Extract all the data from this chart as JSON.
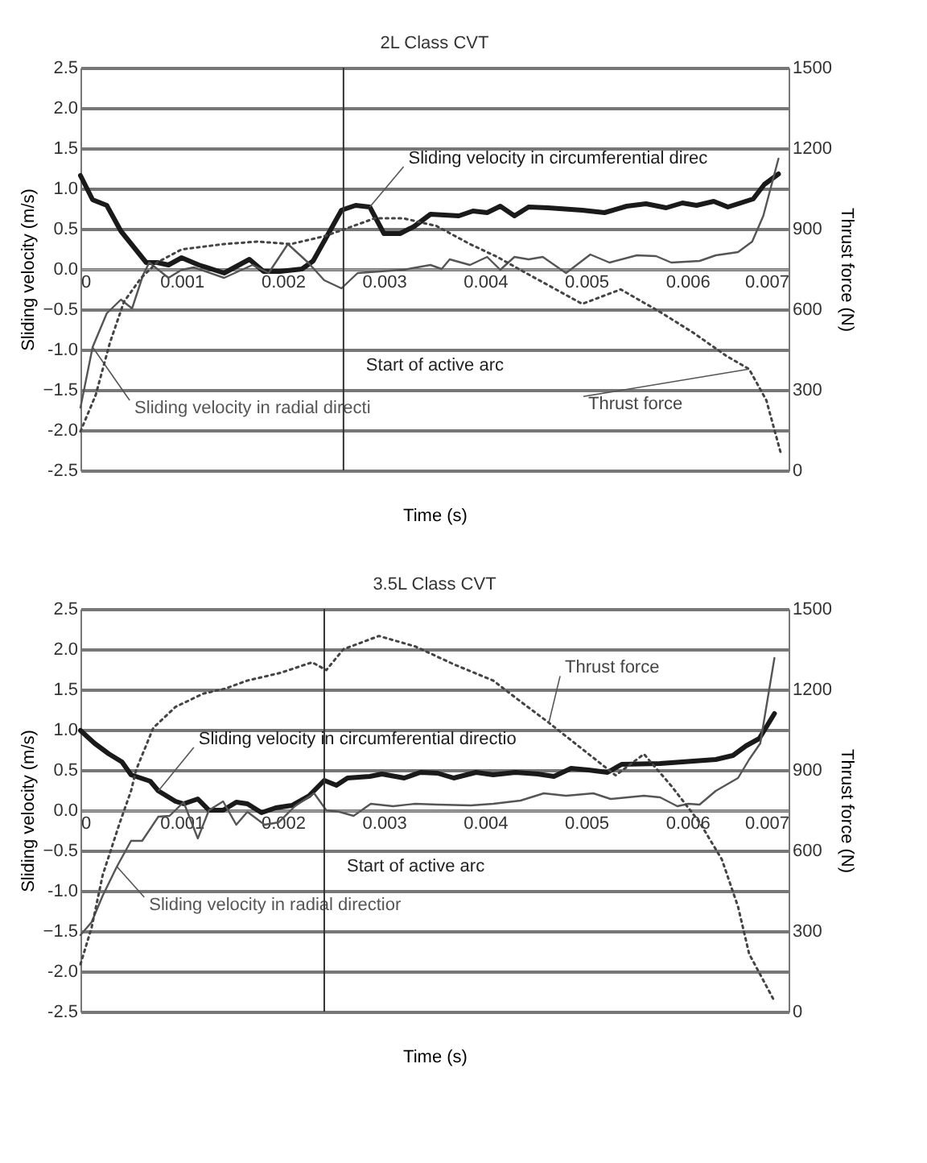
{
  "chart_data": [
    {
      "type": "line",
      "title": "2L Class CVT",
      "xlabel": "Time (s)",
      "ylabel": "Sliding velocity (m/s)",
      "y2label": "Thrust force (N)",
      "xlim": [
        0,
        0.007
      ],
      "xticks": [
        0,
        0.001,
        0.002,
        0.003,
        0.004,
        0.005,
        0.006,
        0.007
      ],
      "ylim": [
        -2.5,
        2.5
      ],
      "yticks": [
        {
          "value": -2.5,
          "label": "-2.5"
        },
        {
          "value": -2,
          "label": "-2.0"
        },
        -1.5,
        {
          "value": -1,
          "label": "-1.0"
        },
        -0.5,
        {
          "value": 0,
          "label": "0.0"
        },
        0.5,
        {
          "value": 1,
          "label": "1.0"
        },
        1.5,
        {
          "value": 2,
          "label": "2.0"
        },
        2.5
      ],
      "y2lim": [
        0,
        1500
      ],
      "y2ticks": [
        0,
        300,
        600,
        900,
        1200,
        1500
      ],
      "grid": "y",
      "series": [
        {
          "name": "Sliding velocity in circumferential direc",
          "color": "#1a1a1a",
          "line_style": "solid",
          "x": [
            0,
            0.00012,
            0.00026,
            0.0004,
            0.00065,
            0.00076,
            0.00087,
            0.001,
            0.00117,
            0.00142,
            0.00167,
            0.00181,
            0.00197,
            0.00219,
            0.0023,
            0.00258,
            0.00272,
            0.00286,
            0.003,
            0.00316,
            0.0033,
            0.00346,
            0.00374,
            0.00388,
            0.00402,
            0.00415,
            0.00429,
            0.00443,
            0.00462,
            0.00496,
            0.00518,
            0.0054,
            0.00559,
            0.00579,
            0.00595,
            0.00609,
            0.00626,
            0.0064,
            0.00665,
            0.00676,
            0.0069
          ],
          "values": [
            1.16,
            0.86,
            0.79,
            0.47,
            0.08,
            0.08,
            0.05,
            0.14,
            0.05,
            -0.05,
            0.12,
            -0.03,
            -0.03,
            0.0,
            0.1,
            0.73,
            0.79,
            0.77,
            0.44,
            0.44,
            0.53,
            0.68,
            0.66,
            0.72,
            0.7,
            0.78,
            0.66,
            0.77,
            0.76,
            0.73,
            0.7,
            0.78,
            0.81,
            0.76,
            0.82,
            0.79,
            0.84,
            0.77,
            0.87,
            1.05,
            1.18
          ]
        },
        {
          "name": "Sliding velocity in radial directi",
          "color": "#555555",
          "line_style": "solid",
          "x": [
            0,
            0.00012,
            0.00026,
            0.0004,
            0.00051,
            0.00062,
            0.00068,
            0.00087,
            0.001,
            0.00112,
            0.00142,
            0.0017,
            0.00186,
            0.00205,
            0.00225,
            0.00241,
            0.00258,
            0.00274,
            0.00296,
            0.00319,
            0.00346,
            0.00357,
            0.00365,
            0.00385,
            0.00402,
            0.00415,
            0.00429,
            0.00443,
            0.00457,
            0.0048,
            0.00504,
            0.00523,
            0.0055,
            0.00569,
            0.00584,
            0.00612,
            0.00628,
            0.0065,
            0.00664,
            0.00675,
            0.0069
          ],
          "values": [
            -1.72,
            -0.97,
            -0.55,
            -0.38,
            -0.49,
            -0.07,
            0.08,
            -0.11,
            -0.01,
            0.02,
            -0.11,
            0.05,
            -0.05,
            0.31,
            0.08,
            -0.14,
            -0.24,
            -0.05,
            -0.03,
            -0.01,
            0.05,
            0.0,
            0.12,
            0.05,
            0.15,
            -0.01,
            0.15,
            0.12,
            0.15,
            -0.05,
            0.18,
            0.08,
            0.17,
            0.16,
            0.08,
            0.1,
            0.17,
            0.21,
            0.34,
            0.66,
            1.37
          ]
        },
        {
          "name": "Thrust force",
          "color": "#444444",
          "line_style": "dotted",
          "axis": "y2",
          "x": [
            0,
            0.00015,
            0.00029,
            0.00043,
            0.0006,
            0.00076,
            0.001,
            0.00142,
            0.00175,
            0.00208,
            0.00241,
            0.00263,
            0.00291,
            0.00319,
            0.00352,
            0.00385,
            0.00412,
            0.0044,
            0.00468,
            0.00496,
            0.00534,
            0.00573,
            0.00606,
            0.00639,
            0.00661,
            0.00678,
            0.00692
          ],
          "values": [
            145,
            280,
            474,
            628,
            717,
            775,
            823,
            843,
            852,
            843,
            872,
            901,
            939,
            939,
            910,
            843,
            795,
            736,
            678,
            620,
            674,
            590,
            512,
            425,
            377,
            261,
            68
          ]
        }
      ],
      "ref_lines": [
        {
          "axis": "x",
          "value": 0.0026,
          "label": "Start of active arc"
        }
      ]
    },
    {
      "type": "line",
      "title": "3.5L Class CVT",
      "xlabel": "Time (s)",
      "ylabel": "Sliding velocity (m/s)",
      "y2label": "Thrust force (N)",
      "xlim": [
        0,
        0.007
      ],
      "xticks": [
        0,
        0.001,
        0.002,
        0.003,
        0.004,
        0.005,
        0.006,
        0.007
      ],
      "ylim": [
        -2.5,
        2.5
      ],
      "yticks": [
        {
          "value": -2.5,
          "label": "-2.5"
        },
        {
          "value": -2,
          "label": "-2.0"
        },
        -1.5,
        {
          "value": -1,
          "label": "-1.0"
        },
        -0.5,
        {
          "value": 0,
          "label": "0.0"
        },
        0.5,
        {
          "value": 1,
          "label": "1.0"
        },
        1.5,
        {
          "value": 2,
          "label": "2.0"
        },
        2.5
      ],
      "y2lim": [
        0,
        1500
      ],
      "y2ticks": [
        0,
        300,
        600,
        900,
        1200,
        1500
      ],
      "grid": "y",
      "series": [
        {
          "name": "Sliding velocity in circumferential directio",
          "color": "#1a1a1a",
          "line_style": "solid",
          "x": [
            0,
            0.00014,
            0.00028,
            0.00041,
            0.0005,
            0.00069,
            0.00077,
            0.00094,
            0.00102,
            0.00116,
            0.00127,
            0.00141,
            0.00154,
            0.00165,
            0.00179,
            0.00193,
            0.00209,
            0.00226,
            0.00241,
            0.00253,
            0.00264,
            0.00286,
            0.00298,
            0.0032,
            0.00336,
            0.00353,
            0.00369,
            0.00391,
            0.00408,
            0.0043,
            0.00452,
            0.00468,
            0.00485,
            0.00502,
            0.00521,
            0.00535,
            0.00573,
            0.00606,
            0.00628,
            0.00645,
            0.00658,
            0.00671,
            0.00686
          ],
          "values": [
            0.99,
            0.83,
            0.7,
            0.6,
            0.44,
            0.36,
            0.24,
            0.11,
            0.08,
            0.14,
            0.0,
            0.0,
            0.1,
            0.08,
            -0.03,
            0.03,
            0.06,
            0.18,
            0.37,
            0.31,
            0.4,
            0.42,
            0.45,
            0.4,
            0.47,
            0.46,
            0.4,
            0.47,
            0.44,
            0.47,
            0.45,
            0.42,
            0.52,
            0.5,
            0.47,
            0.57,
            0.58,
            0.61,
            0.63,
            0.68,
            0.8,
            0.89,
            1.2
          ]
        },
        {
          "name": "Sliding velocity in radial directior",
          "color": "#555555",
          "line_style": "solid",
          "x": [
            0,
            0.00011,
            0.00022,
            0.00036,
            0.0005,
            0.00061,
            0.00077,
            0.00088,
            0.00102,
            0.00116,
            0.00127,
            0.00141,
            0.00154,
            0.00165,
            0.00182,
            0.00196,
            0.00212,
            0.00231,
            0.00243,
            0.00256,
            0.0027,
            0.00287,
            0.00309,
            0.00331,
            0.00353,
            0.00386,
            0.00408,
            0.00435,
            0.00458,
            0.0048,
            0.00507,
            0.00524,
            0.00557,
            0.00573,
            0.0059,
            0.00601,
            0.00612,
            0.00628,
            0.0065,
            0.00661,
            0.00672,
            0.00686
          ],
          "values": [
            -1.55,
            -1.39,
            -1.06,
            -0.7,
            -0.38,
            -0.38,
            -0.08,
            -0.07,
            0.1,
            -0.35,
            0.0,
            0.11,
            -0.18,
            -0.02,
            -0.18,
            -0.15,
            0.05,
            0.21,
            0.0,
            -0.02,
            -0.07,
            0.08,
            0.05,
            0.08,
            0.07,
            0.06,
            0.08,
            0.12,
            0.21,
            0.18,
            0.21,
            0.14,
            0.18,
            0.16,
            0.05,
            0.08,
            0.07,
            0.24,
            0.4,
            0.63,
            0.83,
            1.89
          ]
        },
        {
          "name": "Thrust force",
          "color": "#444444",
          "line_style": "dotted",
          "axis": "y2",
          "x": [
            0,
            0.00011,
            0.00022,
            0.00039,
            0.0005,
            0.00055,
            0.00072,
            0.00094,
            0.00121,
            0.00143,
            0.00165,
            0.00198,
            0.00229,
            0.00243,
            0.0026,
            0.00295,
            0.00331,
            0.0037,
            0.00408,
            0.00435,
            0.00463,
            0.00496,
            0.00529,
            0.00557,
            0.00584,
            0.00612,
            0.00634,
            0.0065,
            0.00661,
            0.00686
          ],
          "values": [
            176,
            313,
            509,
            705,
            822,
            900,
            1057,
            1135,
            1184,
            1203,
            1233,
            1262,
            1301,
            1272,
            1350,
            1399,
            1360,
            1292,
            1233,
            1155,
            1076,
            978,
            880,
            959,
            841,
            705,
            567,
            391,
            215,
            39
          ]
        }
      ],
      "ref_lines": [
        {
          "axis": "x",
          "value": 0.00241,
          "label": "Start of active arc"
        }
      ]
    }
  ]
}
